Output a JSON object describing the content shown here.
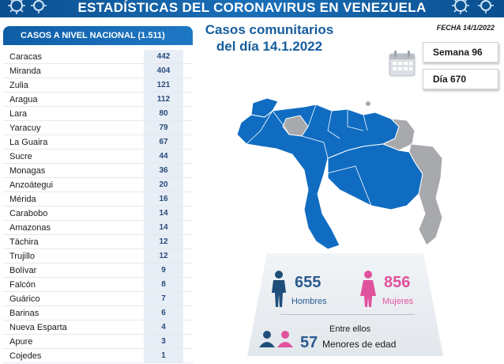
{
  "banner": {
    "title": "ESTADÍSTICAS DEL CORONAVIRUS EN VENEZUELA"
  },
  "fecha": "FECHA 14/1/2022",
  "panel": {
    "header": "CASOS A NIVEL NACIONAL  (1.511)",
    "rows": [
      {
        "name": "Caracas",
        "value": "442"
      },
      {
        "name": "Miranda",
        "value": "404"
      },
      {
        "name": "Zulia",
        "value": "121"
      },
      {
        "name": "Aragua",
        "value": "112"
      },
      {
        "name": "Lara",
        "value": "80"
      },
      {
        "name": "Yaracuy",
        "value": "79"
      },
      {
        "name": "La Guaira",
        "value": "67"
      },
      {
        "name": "Sucre",
        "value": "44"
      },
      {
        "name": "Monagas",
        "value": "36"
      },
      {
        "name": "Anzoátegui",
        "value": "20"
      },
      {
        "name": "Mérida",
        "value": "16"
      },
      {
        "name": "Carabobo",
        "value": "14"
      },
      {
        "name": "Amazonas",
        "value": "14"
      },
      {
        "name": "Táchira",
        "value": "12"
      },
      {
        "name": "Trujillo",
        "value": "12"
      },
      {
        "name": "Bolívar",
        "value": "9"
      },
      {
        "name": "Falcón",
        "value": "8"
      },
      {
        "name": "Guárico",
        "value": "7"
      },
      {
        "name": "Barinas",
        "value": "6"
      },
      {
        "name": "Nueva Esparta",
        "value": "4"
      },
      {
        "name": "Apure",
        "value": "3"
      },
      {
        "name": "Cojedes",
        "value": "1"
      }
    ]
  },
  "casos": {
    "line1": "Casos comunitarios",
    "line2": "del día 14.1.2022"
  },
  "semana": "Semana 96",
  "dia": "Día 670",
  "stats": {
    "hombres_num": "655",
    "hombres_lbl": "Hombres",
    "mujeres_num": "856",
    "mujeres_lbl": "Mujeres",
    "entre": "Entre ellos",
    "menores_num": "57",
    "menores_lbl": "Menores de edad"
  },
  "colors": {
    "blue": "#0f6cc1",
    "male": "#1f4e7a",
    "female": "#e0529c",
    "grey": "#a7a9ac"
  },
  "icons": [
    "virus-icon",
    "calendar-icon",
    "male-person-icon",
    "female-person-icon",
    "children-icon"
  ]
}
